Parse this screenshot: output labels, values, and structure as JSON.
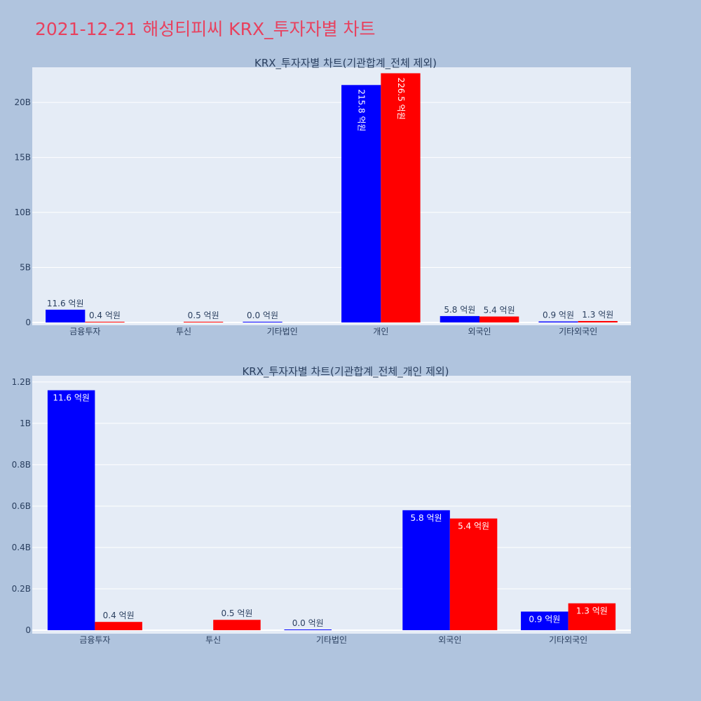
{
  "page": {
    "title": "2021-12-21 해성티피씨 KRX_투자자별 차트"
  },
  "colors": {
    "background": "#b0c4de",
    "plot_background": "#e5ecf6",
    "title": "#e8415e",
    "series_1": "#0000ff",
    "series_2": "#ff0000"
  },
  "chart_data": [
    {
      "type": "bar",
      "title": "KRX_투자자별 차트(기관합계_전체 제외)",
      "categories": [
        "금융투자",
        "투신",
        "기타법인",
        "개인",
        "외국인",
        "기타외국인"
      ],
      "ylim": [
        0,
        23000000000
      ],
      "yticks": [
        {
          "value": 0,
          "label": "0"
        },
        {
          "value": 5000000000,
          "label": "5B"
        },
        {
          "value": 10000000000,
          "label": "10B"
        },
        {
          "value": 15000000000,
          "label": "15B"
        },
        {
          "value": 20000000000,
          "label": "20B"
        }
      ],
      "grid": true,
      "series": [
        {
          "values": [
            1160000000,
            null,
            0,
            21580000000,
            580000000,
            90000000
          ],
          "labels": [
            "11.6 억원",
            "",
            "0.0 억원",
            "215.8 억원",
            "5.8 억원",
            "0.9 억원"
          ]
        },
        {
          "values": [
            40000000,
            50000000,
            null,
            22650000000,
            540000000,
            130000000
          ],
          "labels": [
            "0.4 억원",
            "0.5 억원",
            "",
            "226.5 억원",
            "5.4 억원",
            "1.3 억원"
          ]
        }
      ]
    },
    {
      "type": "bar",
      "title": "KRX_투자자별 차트(기관합계_전체_개인 제외)",
      "categories": [
        "금융투자",
        "투신",
        "기타법인",
        "외국인",
        "기타외국인"
      ],
      "ylim": [
        0,
        1220000000
      ],
      "yticks": [
        {
          "value": 0,
          "label": "0"
        },
        {
          "value": 200000000,
          "label": "0.2B"
        },
        {
          "value": 400000000,
          "label": "0.4B"
        },
        {
          "value": 600000000,
          "label": "0.6B"
        },
        {
          "value": 800000000,
          "label": "0.8B"
        },
        {
          "value": 1000000000,
          "label": "1B"
        },
        {
          "value": 1200000000,
          "label": "1.2B"
        }
      ],
      "grid": true,
      "series": [
        {
          "values": [
            1160000000,
            null,
            0,
            580000000,
            90000000
          ],
          "labels": [
            "11.6 억원",
            "",
            "0.0 억원",
            "5.8 억원",
            "0.9 억원"
          ]
        },
        {
          "values": [
            40000000,
            50000000,
            null,
            540000000,
            130000000
          ],
          "labels": [
            "0.4 억원",
            "0.5 억원",
            "",
            "5.4 억원",
            "1.3 억원"
          ]
        }
      ]
    }
  ]
}
